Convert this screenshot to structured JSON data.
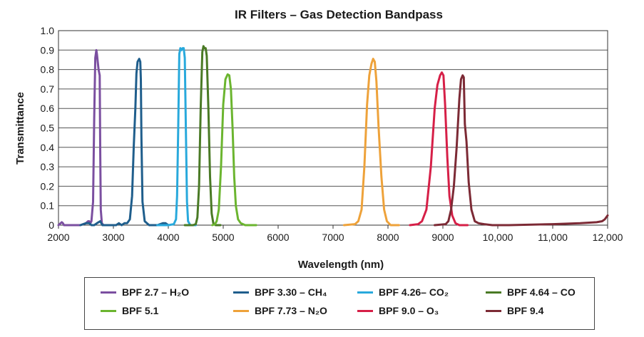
{
  "chart_data": {
    "type": "line",
    "title": "IR Filters – Gas Detection Bandpass",
    "xlabel": "Wavelength (nm)",
    "ylabel": "Transmittance",
    "xlim": [
      2000,
      12000
    ],
    "ylim": [
      0,
      1.0
    ],
    "xticks": [
      2000,
      3000,
      4000,
      5000,
      6000,
      7000,
      8000,
      9000,
      10000,
      11000,
      12000
    ],
    "xtick_labels": [
      "2000",
      "3000",
      "4000",
      "5000",
      "6000",
      "7000",
      "8000",
      "9000",
      "10,000",
      "11,000",
      "12,000"
    ],
    "yticks": [
      0,
      0.1,
      0.2,
      0.3,
      0.4,
      0.5,
      0.6,
      0.7,
      0.8,
      0.9,
      1.0
    ],
    "ytick_labels": [
      "0",
      "0.1",
      "0.2",
      "0.3",
      "0.4",
      "0.5",
      "0.6",
      "0.7",
      "0.8",
      "0.9",
      "1.0"
    ],
    "grid": true,
    "legend_position": "bottom",
    "series": [
      {
        "name": "BPF 2.7 – H₂O",
        "color": "#7b4fa0",
        "x": [
          2000,
          2040,
          2060,
          2080,
          2100,
          2400,
          2500,
          2540,
          2560,
          2580,
          2600,
          2630,
          2650,
          2670,
          2690,
          2700,
          2730,
          2750,
          2760,
          2770,
          2790,
          2820,
          2900
        ],
        "y": [
          0,
          0.01,
          0.015,
          0.01,
          0,
          0,
          0.01,
          0.02,
          0.02,
          0.01,
          0.02,
          0.12,
          0.55,
          0.86,
          0.9,
          0.88,
          0.8,
          0.77,
          0.4,
          0.08,
          0.01,
          0,
          0
        ]
      },
      {
        "name": "BPF 3.30 – CH₄",
        "color": "#1f5e8c",
        "x": [
          2400,
          2500,
          2560,
          2600,
          2650,
          2700,
          2760,
          2800,
          3050,
          3100,
          3150,
          3200,
          3250,
          3300,
          3340,
          3370,
          3400,
          3420,
          3440,
          3470,
          3490,
          3500,
          3510,
          3530,
          3570,
          3650,
          3800,
          3900,
          3950,
          4000
        ],
        "y": [
          0,
          0.01,
          0.01,
          0,
          0,
          0.01,
          0.02,
          0,
          0,
          0.01,
          0,
          0.01,
          0.01,
          0.03,
          0.15,
          0.4,
          0.6,
          0.78,
          0.84,
          0.855,
          0.84,
          0.75,
          0.45,
          0.12,
          0.02,
          0,
          0,
          0.01,
          0.01,
          0
        ]
      },
      {
        "name": "BPF 4.26– CO₂",
        "color": "#28a9dc",
        "x": [
          3800,
          4000,
          4100,
          4140,
          4160,
          4180,
          4200,
          4220,
          4240,
          4260,
          4280,
          4300,
          4320,
          4340,
          4360,
          4400,
          4500
        ],
        "y": [
          0,
          0,
          0.005,
          0.03,
          0.15,
          0.5,
          0.88,
          0.91,
          0.9,
          0.91,
          0.91,
          0.86,
          0.5,
          0.12,
          0.02,
          0,
          0
        ]
      },
      {
        "name": "BPF 4.64 – CO",
        "color": "#4a7a25",
        "x": [
          4300,
          4450,
          4500,
          4530,
          4560,
          4590,
          4620,
          4640,
          4660,
          4680,
          4700,
          4730,
          4760,
          4790,
          4820,
          4860,
          4950
        ],
        "y": [
          0,
          0,
          0.005,
          0.04,
          0.2,
          0.6,
          0.89,
          0.92,
          0.91,
          0.91,
          0.87,
          0.6,
          0.25,
          0.06,
          0.01,
          0,
          0
        ]
      },
      {
        "name": "BPF 5.1",
        "color": "#6bb52f",
        "x": [
          4800,
          4850,
          4880,
          4920,
          4960,
          5000,
          5040,
          5080,
          5110,
          5140,
          5170,
          5200,
          5230,
          5270,
          5320,
          5400,
          5600
        ],
        "y": [
          0,
          0.005,
          0.02,
          0.08,
          0.3,
          0.62,
          0.75,
          0.775,
          0.77,
          0.7,
          0.5,
          0.25,
          0.1,
          0.03,
          0.01,
          0,
          0
        ]
      },
      {
        "name": "BPF 7.73 – N₂O",
        "color": "#eea23a",
        "x": [
          7200,
          7400,
          7460,
          7520,
          7570,
          7620,
          7660,
          7700,
          7730,
          7760,
          7790,
          7830,
          7880,
          7930,
          7980,
          8050,
          8200
        ],
        "y": [
          0,
          0.005,
          0.02,
          0.08,
          0.3,
          0.62,
          0.77,
          0.83,
          0.855,
          0.84,
          0.74,
          0.5,
          0.25,
          0.08,
          0.02,
          0,
          0
        ]
      },
      {
        "name": "BPF 9.0 – O₃",
        "color": "#d61f47",
        "x": [
          8400,
          8550,
          8620,
          8700,
          8780,
          8850,
          8900,
          8950,
          8980,
          9010,
          9040,
          9080,
          9120,
          9170,
          9230,
          9300,
          9450
        ],
        "y": [
          0,
          0.005,
          0.02,
          0.08,
          0.3,
          0.6,
          0.72,
          0.77,
          0.785,
          0.77,
          0.62,
          0.35,
          0.15,
          0.05,
          0.01,
          0,
          0
        ]
      },
      {
        "name": "BPF 9.4",
        "color": "#7c2a35",
        "x": [
          8850,
          9050,
          9100,
          9150,
          9200,
          9250,
          9300,
          9330,
          9360,
          9380,
          9400,
          9430,
          9470,
          9520,
          9580,
          9650,
          9750,
          9900,
          10200,
          11000,
          11500,
          11800,
          11900,
          11950,
          12000
        ],
        "y": [
          0,
          0.005,
          0.02,
          0.08,
          0.2,
          0.4,
          0.65,
          0.75,
          0.77,
          0.76,
          0.52,
          0.43,
          0.22,
          0.08,
          0.02,
          0.01,
          0.005,
          0,
          0,
          0.005,
          0.01,
          0.015,
          0.02,
          0.03,
          0.05
        ]
      }
    ]
  },
  "legend": [
    "BPF 2.7 – H₂O",
    "BPF 3.30 – CH₄",
    "BPF 4.26– CO₂",
    "BPF 4.64 – CO",
    "BPF 5.1",
    "BPF 7.73 – N₂O",
    "BPF 9.0 – O₃",
    "BPF 9.4"
  ]
}
